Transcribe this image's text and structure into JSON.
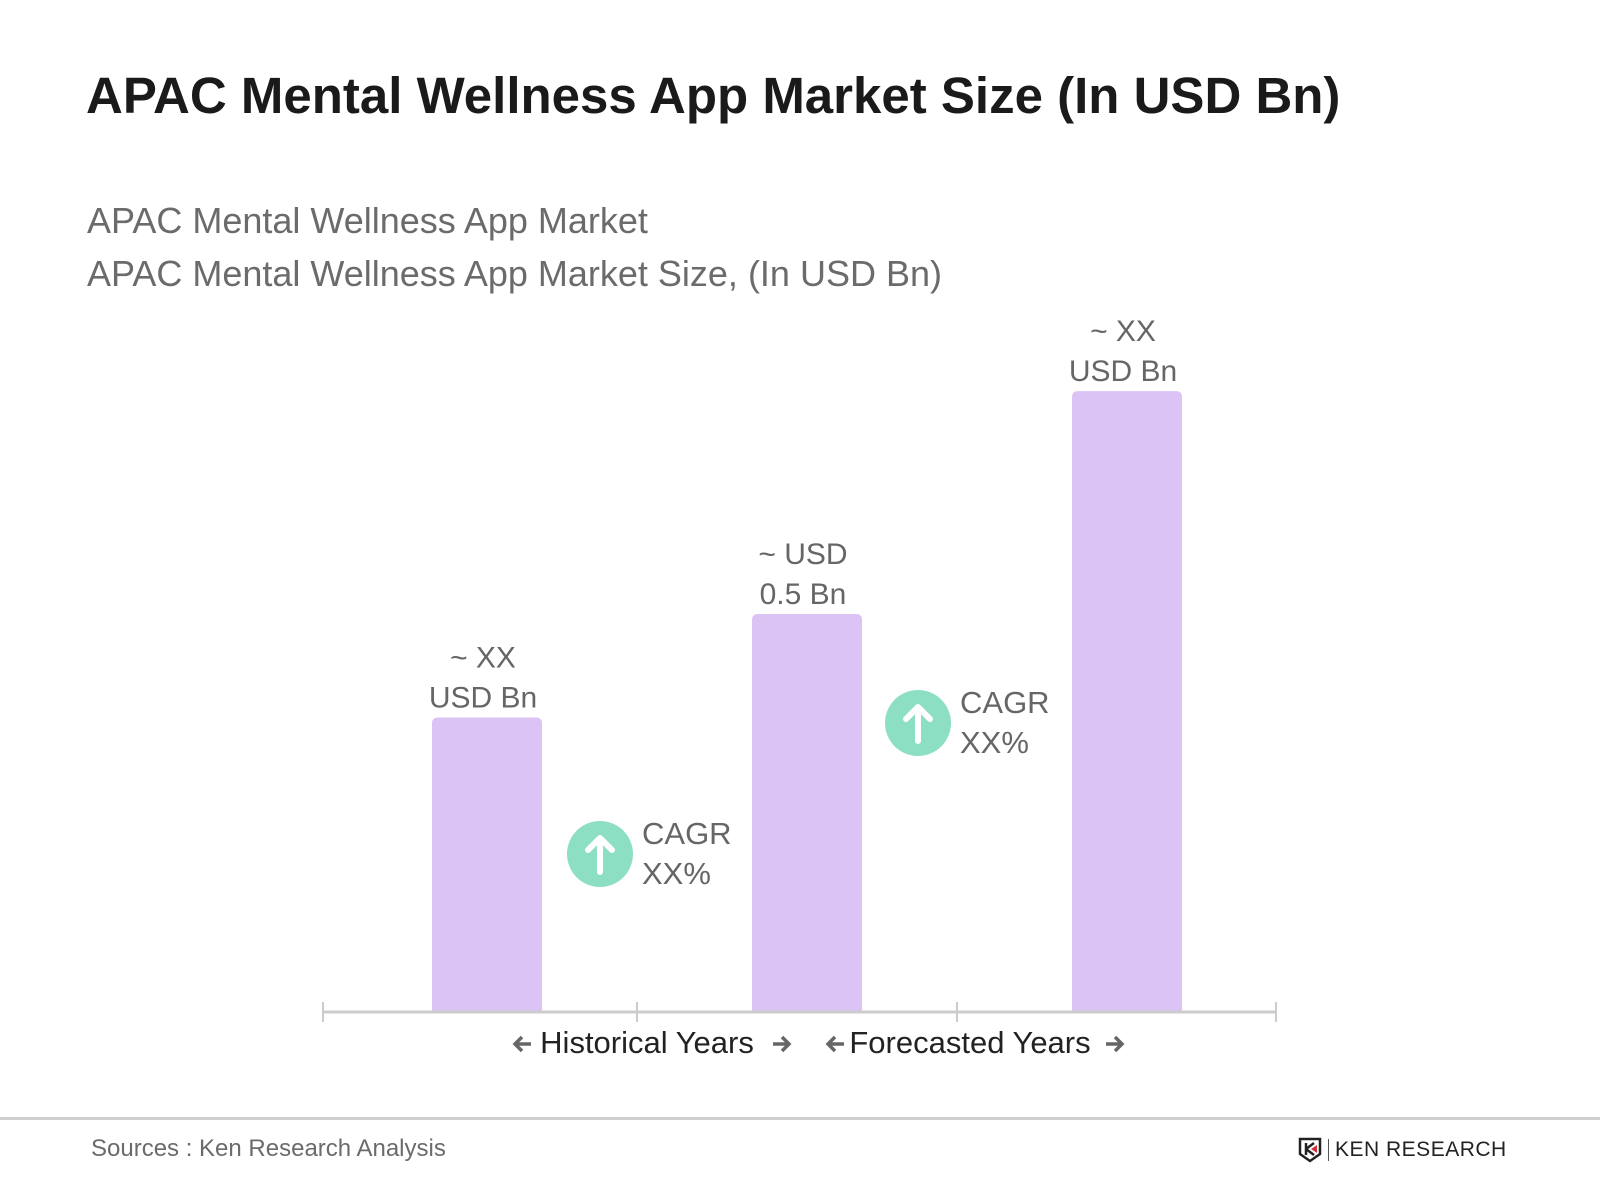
{
  "title": "APAC Mental Wellness App Market Size (In USD Bn)",
  "subtitle_1": "APAC Mental Wellness App Market",
  "subtitle_2": "APAC Mental Wellness App Market Size, (In USD Bn)",
  "source": "Sources : Ken Research Analysis",
  "logo_text": "KEN RESEARCH",
  "colors": {
    "bar": "#dcc3f6",
    "cagr_circle": "#8ddfc4",
    "axis": "#cccccc",
    "label": "#666666"
  },
  "chart_data": {
    "type": "bar",
    "values": [
      0.37,
      0.5,
      0.78
    ],
    "data_labels": [
      [
        "~ XX",
        "USD Bn"
      ],
      [
        "~ USD",
        "0.5 Bn"
      ],
      [
        "~ XX",
        "USD Bn"
      ]
    ],
    "xlabel_segments": [
      "Historical Years",
      "Forecasted Years"
    ],
    "annotations": [
      {
        "icon": "arrow-up-icon",
        "lines": [
          "CAGR",
          "XX%"
        ]
      },
      {
        "icon": "arrow-up-icon",
        "lines": [
          "CAGR",
          "XX%"
        ]
      }
    ],
    "grid": false,
    "ylim": [
      0,
      0.8
    ]
  }
}
